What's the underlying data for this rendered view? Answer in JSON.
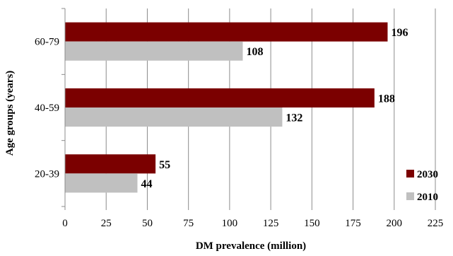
{
  "chart_data": {
    "type": "bar",
    "orientation": "horizontal",
    "categories": [
      "20-39",
      "40-59",
      "60-79"
    ],
    "series": [
      {
        "name": "2030",
        "values": [
          55,
          188,
          196
        ],
        "color": "#7b0000"
      },
      {
        "name": "2010",
        "values": [
          44,
          132,
          108
        ],
        "color": "#c0c0c0"
      }
    ],
    "xlabel": "DM prevalence (million)",
    "ylabel": "Age groups (years)",
    "xlim": [
      0,
      225
    ],
    "xticks": [
      0,
      25,
      50,
      75,
      100,
      125,
      150,
      175,
      200,
      225
    ],
    "grid": true,
    "legend_position": "bottom-right",
    "data_labels": true
  }
}
